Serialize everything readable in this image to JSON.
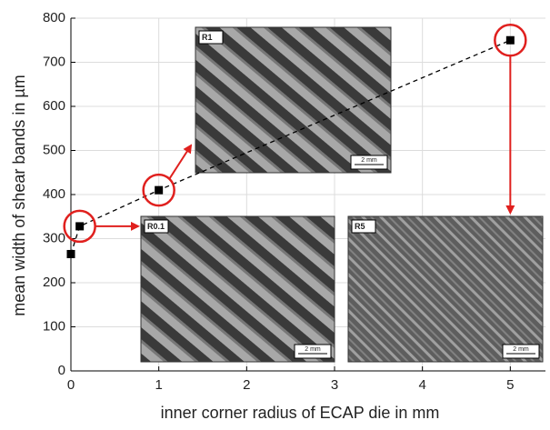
{
  "chart_data": {
    "type": "scatter",
    "x_label": "inner corner radius of ECAP die in mm",
    "y_label": "mean width of shear bands in µm",
    "x": [
      0,
      0.1,
      1,
      5
    ],
    "values": [
      265,
      328,
      410,
      750
    ],
    "color": "#000000",
    "highlight_color": "#e0201e",
    "xlim": [
      0,
      5.4
    ],
    "ylim": [
      0,
      800
    ],
    "xticks": [
      0,
      1,
      2,
      3,
      4,
      5
    ],
    "yticks": [
      0,
      100,
      200,
      300,
      400,
      500,
      600,
      700,
      800
    ],
    "grid": true,
    "insets": [
      {
        "label": "R1",
        "scale": "2 mm"
      },
      {
        "label": "R0.1",
        "scale": "2 mm"
      },
      {
        "label": "R5",
        "scale": "2 mm"
      }
    ]
  }
}
